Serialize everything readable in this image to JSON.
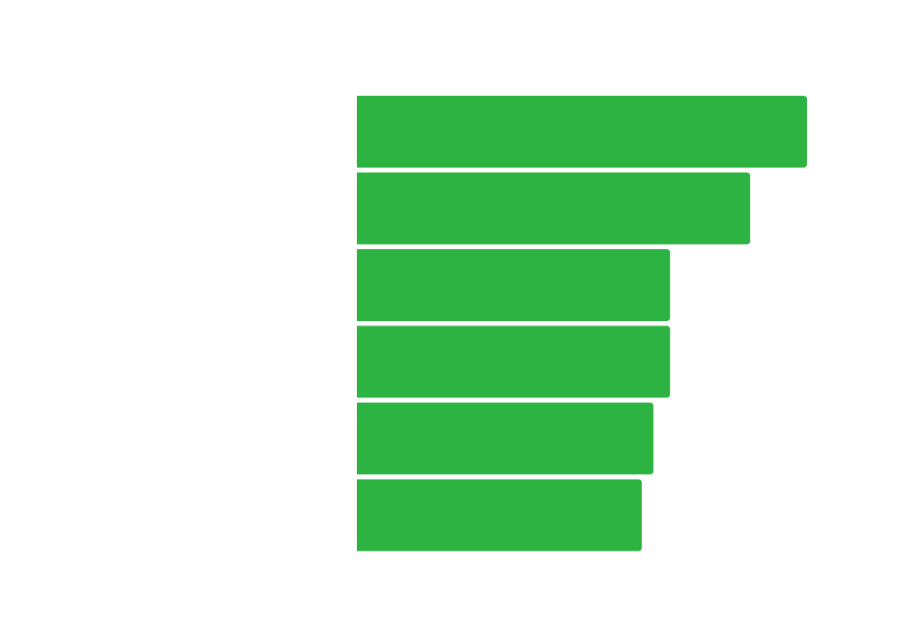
{
  "chart_data": {
    "type": "bar",
    "orientation": "horizontal",
    "title": "",
    "xlabel": "",
    "ylabel": "",
    "categories": [
      "",
      "",
      "",
      "",
      "",
      ""
    ],
    "values": [
      100,
      87.4,
      69.6,
      69.6,
      65.9,
      63.3
    ],
    "xlim": [
      0,
      100
    ],
    "grid": false,
    "legend": "none",
    "colors": {
      "bar": "#2db342",
      "background": "#ffffff"
    }
  }
}
